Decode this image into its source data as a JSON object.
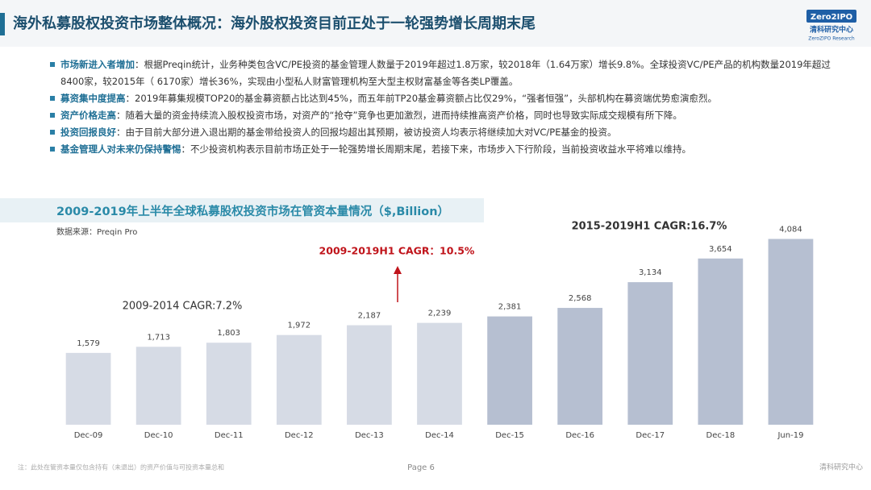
{
  "header": {
    "title": "海外私募股权投资市场整体概况：海外股权投资目前正处于一轮强势增长周期末尾",
    "logo": "Zero2IPO",
    "logo_cn": "清科研究中心",
    "logo_en": "ZeroZIPO Research"
  },
  "bullets": [
    {
      "label": "市场新进入者增加",
      "text": "：根据Preqin统计，业务种类包含VC/PE投资的基金管理人数量于2019年超过1.8万家，较2018年（1.64万家）增长9.8%。全球投资VC/PE产品的机构数量2019年超过8400家，较2015年（ 6170家）增长36%，实现由小型私人财富管理机构至大型主权财富基金等各类LP覆盖。"
    },
    {
      "label": "募资集中度提高",
      "text": "：2019年募集规模TOP20的基金募资额占比达到45%，而五年前TP20基金募资额占比仅29%，“强者恒强”，头部机构在募资端优势愈演愈烈。"
    },
    {
      "label": "资产价格走高",
      "text": "：随着大量的资金持续流入股权投资市场，对资产的“抢夺”竞争也更加激烈，进而持续推高资产价格，同时也导致实际成交规模有所下降。"
    },
    {
      "label": "投资回报良好",
      "text": "：由于目前大部分进入退出期的基金带给投资人的回报均超出其预期，被访投资人均表示将继续加大对VC/PE基金的投资。"
    },
    {
      "label": "基金管理人对未来仍保持警惕",
      "text": "：不少投资机构表示目前市场正处于一轮强势增长周期末尾，若接下来，市场步入下行阶段，当前投资收益水平将难以维持。"
    }
  ],
  "chart_data": {
    "type": "bar",
    "title": "2009-2019年上半年全球私募股权投资市场在管资本量情况（$,Billion）",
    "source": "数据来源：Preqin Pro",
    "categories": [
      "Dec-09",
      "Dec-10",
      "Dec-11",
      "Dec-12",
      "Dec-13",
      "Dec-14",
      "Dec-15",
      "Dec-16",
      "Dec-17",
      "Dec-18",
      "Jun-19"
    ],
    "values": [
      1579,
      1713,
      1803,
      1972,
      2187,
      2239,
      2381,
      2568,
      3134,
      3654,
      4084
    ],
    "value_labels": [
      "1,579",
      "1,713",
      "1,803",
      "1,972",
      "2,187",
      "2,239",
      "2,381",
      "2,568",
      "3,134",
      "3,654",
      "4,084"
    ],
    "colors": [
      "#d6dbe5",
      "#d6dbe5",
      "#d6dbe5",
      "#d6dbe5",
      "#d6dbe5",
      "#d6dbe5",
      "#b6bfd1",
      "#b6bfd1",
      "#b6bfd1",
      "#b6bfd1",
      "#b6bfd1"
    ],
    "ylim": [
      0,
      4500
    ],
    "annotations": [
      "2015-2019H1 CAGR:16.7%",
      "2009-2019H1 CAGR：10.5%",
      "2009-2014 CAGR:7.2%"
    ]
  },
  "footer": {
    "note": "注：此处在管资本量仅包含持有（未退出）的资产价值与可投资本量总和",
    "page": "Page  6",
    "brand": "清科研究中心"
  }
}
